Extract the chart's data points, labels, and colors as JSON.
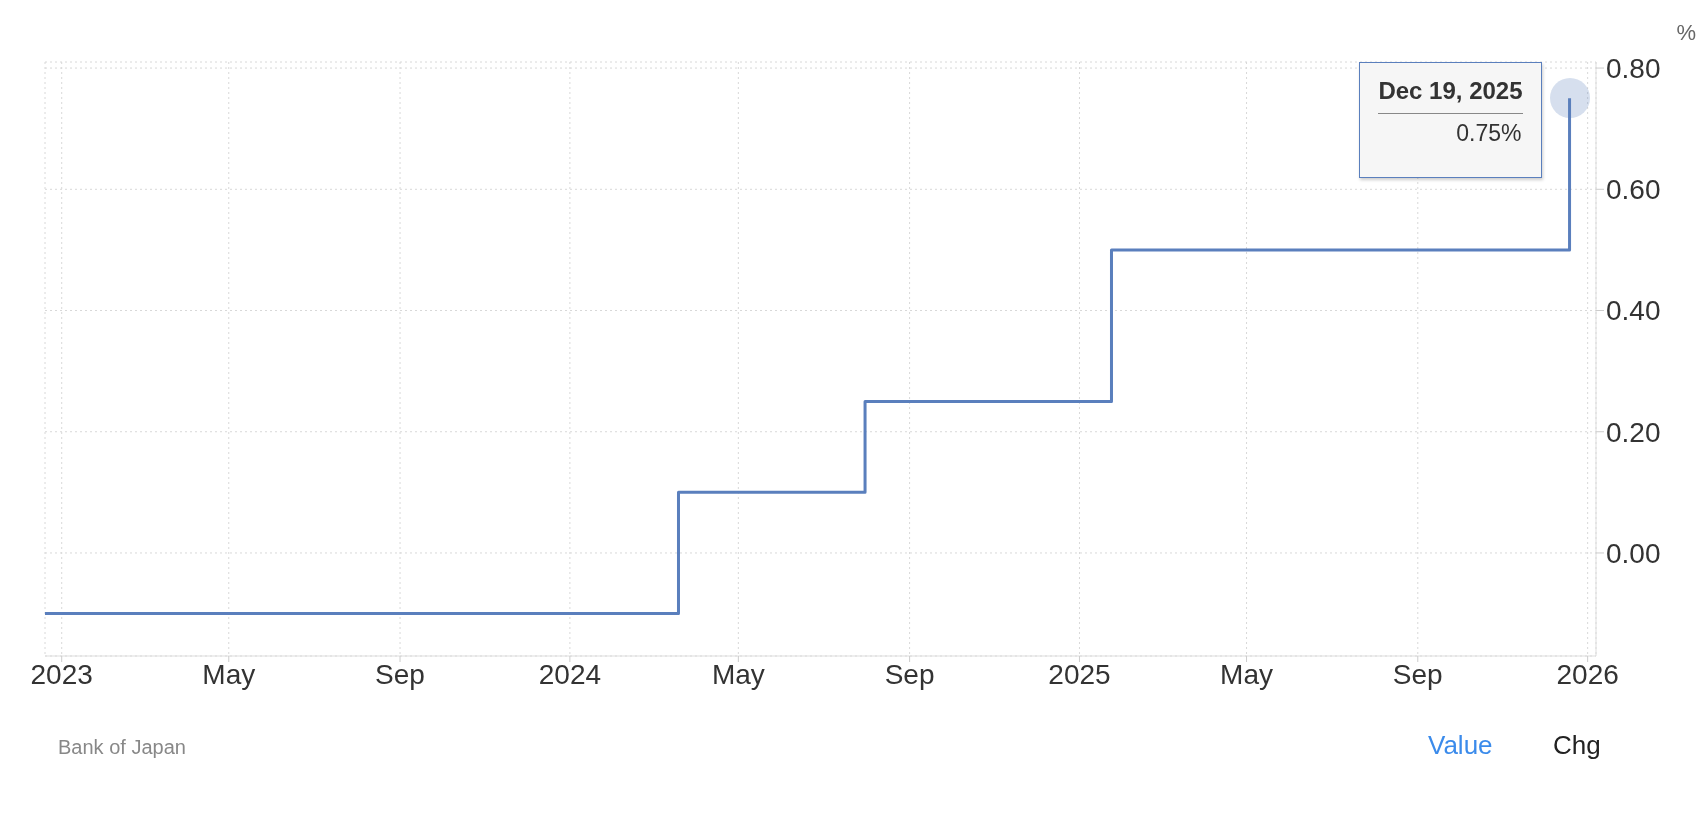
{
  "chart_data": {
    "type": "step",
    "ylabel": "%",
    "x": [
      "2022-12-20",
      "2024-03-19",
      "2024-07-31",
      "2025-01-24",
      "2025-12-19"
    ],
    "series": [
      {
        "color": "#5a7fbd",
        "values": [
          -0.1,
          0.1,
          0.25,
          0.5,
          0.75
        ]
      }
    ],
    "xlim": [
      "2022-12-20",
      "2026-01-07"
    ],
    "xticks": [
      {
        "value": "2023-01-01",
        "label": "2023"
      },
      {
        "value": "2023-05-01",
        "label": "May"
      },
      {
        "value": "2023-09-01",
        "label": "Sep"
      },
      {
        "value": "2024-01-01",
        "label": "2024"
      },
      {
        "value": "2024-05-01",
        "label": "May"
      },
      {
        "value": "2024-09-01",
        "label": "Sep"
      },
      {
        "value": "2025-01-01",
        "label": "2025"
      },
      {
        "value": "2025-05-01",
        "label": "May"
      },
      {
        "value": "2025-09-01",
        "label": "Sep"
      },
      {
        "value": "2026-01-01",
        "label": "2026"
      }
    ],
    "ylim": [
      -0.17,
      0.81
    ],
    "yticks": [
      {
        "value": 0,
        "label": "0.00"
      },
      {
        "value": 0.2,
        "label": "0.20"
      },
      {
        "value": 0.4,
        "label": "0.40"
      },
      {
        "value": 0.6,
        "label": "0.60"
      },
      {
        "value": 0.8,
        "label": "0.80"
      }
    ],
    "grid": true,
    "marker": "none",
    "line_style": "solid",
    "annotations": [
      {
        "text": "Dec 19, 2025",
        "x": "2025-12-19",
        "y": 0.75
      },
      {
        "text": "0.75%",
        "x": "2025-12-19",
        "y": 0.75
      },
      "Bank of Japan",
      "Value",
      "Chg"
    ]
  }
}
